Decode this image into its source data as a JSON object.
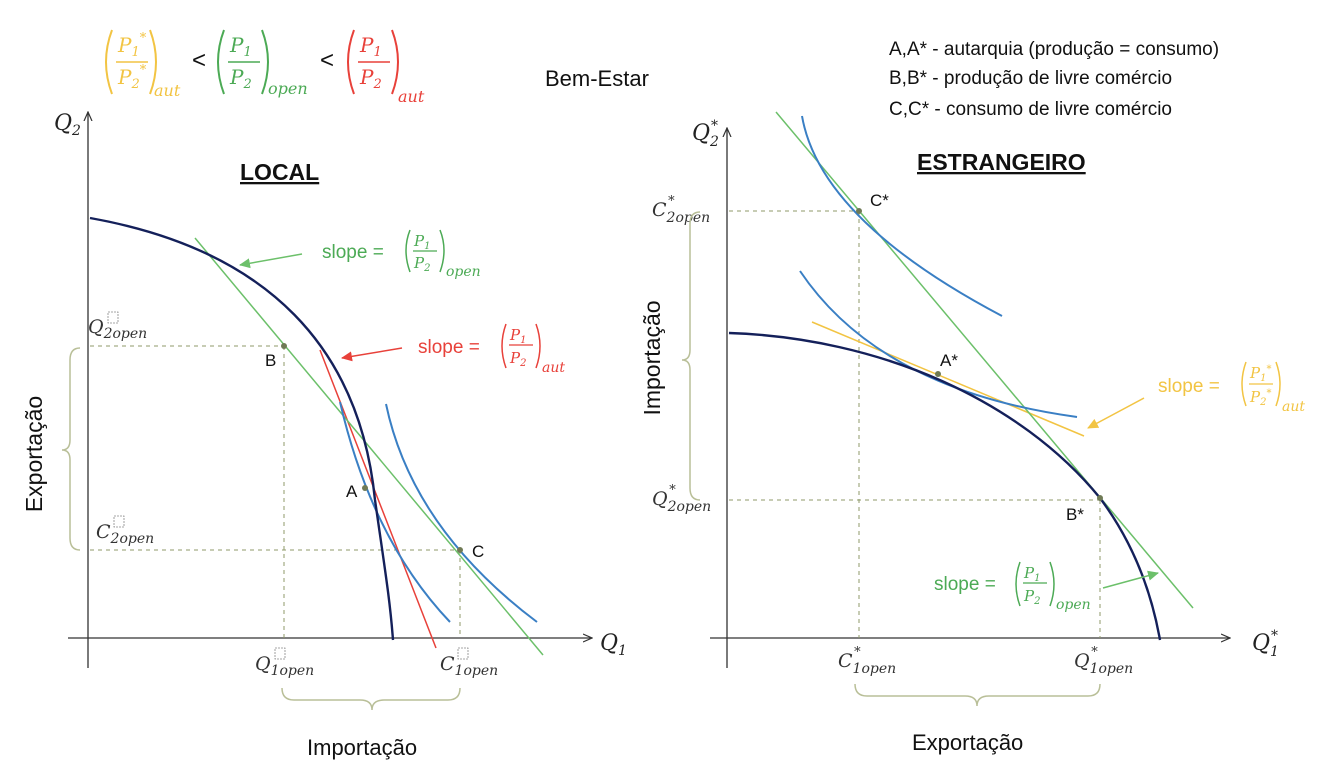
{
  "header": {
    "title": "Bem-Estar",
    "inequality": {
      "left": {
        "num": "P",
        "num_sub": "1",
        "num_star": "*",
        "den": "P",
        "den_sub": "2",
        "den_star": "*",
        "subscript": "aut"
      },
      "middle": {
        "num": "P",
        "num_sub": "1",
        "den": "P",
        "den_sub": "2",
        "subscript": "open"
      },
      "right": {
        "num": "P",
        "num_sub": "1",
        "den": "P",
        "den_sub": "2",
        "subscript": "aut"
      },
      "operator": "<"
    },
    "legend": [
      "A,A* - autarquia (produção = consumo)",
      "B,B* - produção de livre comércio",
      "C,C* - consumo de livre comércio"
    ]
  },
  "local": {
    "title": "LOCAL",
    "y_axis": {
      "label": "Q",
      "sub": "2"
    },
    "x_axis": {
      "label": "Q",
      "sub": "1"
    },
    "points": {
      "A": "A",
      "B": "B",
      "C": "C"
    },
    "ticks": {
      "q2open": {
        "label": "Q",
        "sub": "2open"
      },
      "c2open": {
        "label": "C",
        "sub": "2open"
      },
      "q1open": {
        "label": "Q",
        "sub": "1open"
      },
      "c1open": {
        "label": "C",
        "sub": "1open"
      }
    },
    "slope_open": {
      "text": "slope =",
      "num": "P",
      "num_sub": "1",
      "den": "P",
      "den_sub": "2",
      "subscript": "open"
    },
    "slope_aut": {
      "text": "slope =",
      "num": "P",
      "num_sub": "1",
      "den": "P",
      "den_sub": "2",
      "subscript": "aut"
    },
    "side_label": "Exportação",
    "bottom_label": "Importação"
  },
  "foreign": {
    "title": "ESTRANGEIRO",
    "y_axis": {
      "label": "Q",
      "sub": "2",
      "star": "*"
    },
    "x_axis": {
      "label": "Q",
      "sub": "1",
      "star": "*"
    },
    "points": {
      "A": "A*",
      "B": "B*",
      "C": "C*"
    },
    "ticks": {
      "c2open": {
        "label": "C",
        "sub": "2open",
        "star": "*"
      },
      "q2open": {
        "label": "Q",
        "sub": "2open",
        "star": "*"
      },
      "c1open": {
        "label": "C",
        "sub": "1open",
        "star": "*"
      },
      "q1open": {
        "label": "Q",
        "sub": "1open",
        "star": "*"
      }
    },
    "slope_aut": {
      "text": "slope =",
      "num": "P",
      "num_sub": "1",
      "num_star": "*",
      "den": "P",
      "den_sub": "2",
      "den_star": "*",
      "subscript": "aut"
    },
    "slope_open": {
      "text": "slope =",
      "num": "P",
      "num_sub": "1",
      "den": "P",
      "den_sub": "2",
      "subscript": "open"
    },
    "side_label": "Importação",
    "bottom_label": "Exportação"
  },
  "colors": {
    "ppf": "#14205a",
    "indifference": "#3a7fc4",
    "open_price": "#6cc06a",
    "aut_price_local": "#e8413a",
    "aut_price_foreign": "#f2c443",
    "axis": "#333333",
    "guide": "#8f9a6a",
    "brace": "#b9bf98"
  }
}
